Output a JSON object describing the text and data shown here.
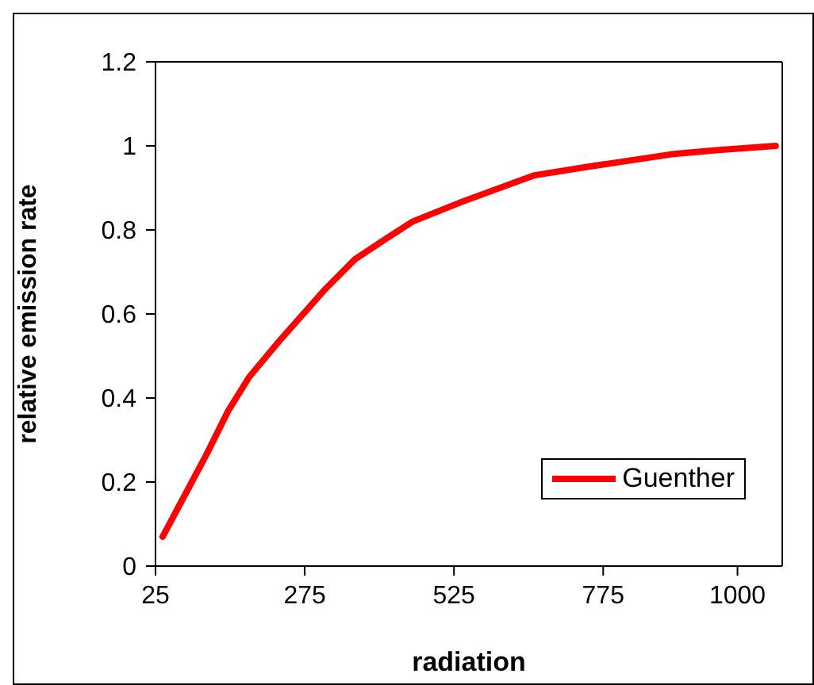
{
  "chart_data": {
    "type": "line",
    "xlabel": "radiation",
    "ylabel": "relative emission rate",
    "xlim": [
      25,
      1075
    ],
    "xticks": [
      25,
      275,
      525,
      775,
      1000
    ],
    "ylim": [
      0,
      1.2
    ],
    "yticks": [
      0,
      0.2,
      0.4,
      0.6,
      0.8,
      1,
      1.2
    ],
    "x": [
      37,
      67,
      112,
      147,
      182,
      235,
      310,
      359,
      412,
      456,
      544,
      660,
      748,
      889,
      968,
      1064
    ],
    "series": [
      {
        "name": "Guenther",
        "color": "#ff0000",
        "values": [
          0.07,
          0.15,
          0.27,
          0.37,
          0.45,
          0.54,
          0.66,
          0.73,
          0.78,
          0.82,
          0.87,
          0.93,
          0.95,
          0.98,
          0.99,
          1.0
        ]
      }
    ],
    "legend": "bottom right",
    "grid": false,
    "marker": "none",
    "line_style": "solid"
  }
}
